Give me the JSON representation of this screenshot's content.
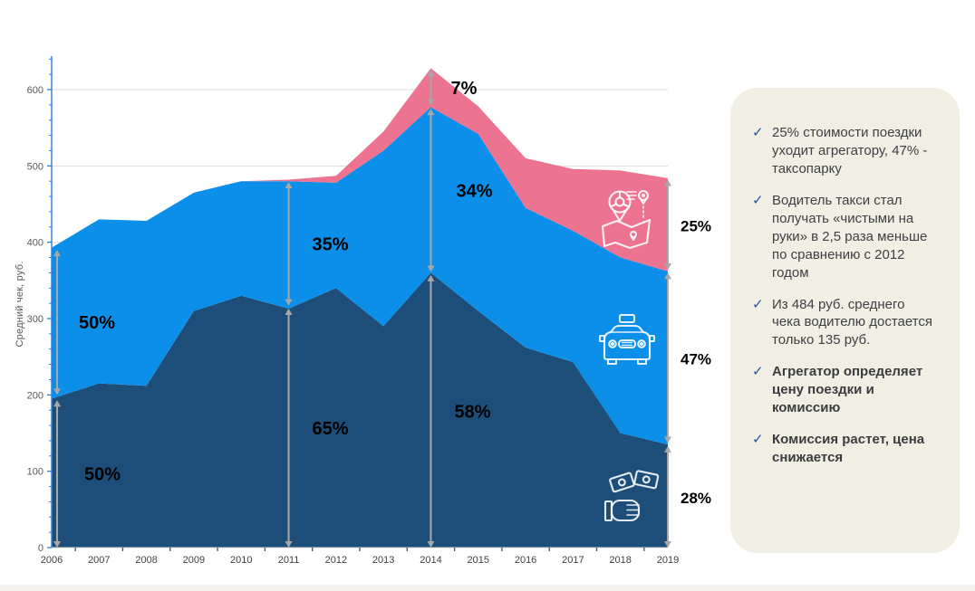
{
  "chart": {
    "axis_color": "#2E7FD4",
    "grid_color": "#DCDCDC",
    "arrow_color": "#A8A8A8",
    "tick_label_color": "#595959",
    "x_label_color": "#404040",
    "pct_label_color": "#000000",
    "y_ticks": [
      0,
      100,
      200,
      300,
      400,
      500,
      600
    ]
  },
  "chart_data": {
    "type": "area",
    "stacked": true,
    "title": "",
    "ylabel": "Средний чек, руб.",
    "xlabel": "",
    "ylim": [
      0,
      650
    ],
    "grid": true,
    "x": [
      2006,
      2007,
      2008,
      2009,
      2010,
      2011,
      2012,
      2013,
      2014,
      2015,
      2016,
      2017,
      2018,
      2019
    ],
    "series": [
      {
        "name": "Водитель такси (чистыми на руки)",
        "icon": "money-in-hand-icon",
        "color": "#1D4E79",
        "values": [
          195,
          215,
          212,
          310,
          330,
          313,
          340,
          290,
          360,
          310,
          262,
          243,
          150,
          135
        ]
      },
      {
        "name": "Таксопарк",
        "icon": "taxi-icon",
        "color": "#0B8FE9",
        "values": [
          198,
          215,
          216,
          155,
          150,
          167,
          138,
          230,
          217,
          232,
          183,
          172,
          230,
          227
        ]
      },
      {
        "name": "Агрегатор",
        "icon": "aggregator-map-icon",
        "color": "#EC7490",
        "values": [
          0,
          0,
          0,
          0,
          0,
          2,
          9,
          25,
          51,
          36,
          65,
          81,
          114,
          122
        ]
      }
    ],
    "stack_totals": [
      393,
      430,
      428,
      465,
      480,
      482,
      487,
      545,
      628,
      578,
      510,
      496,
      494,
      484
    ],
    "annotations": [
      {
        "year": 2006,
        "from": 0,
        "to": 193,
        "label": "50%",
        "dx": 30
      },
      {
        "year": 2006,
        "from": 200,
        "to": 390,
        "label": "50%",
        "dx": 24
      },
      {
        "year": 2011,
        "from": 0,
        "to": 313,
        "label": "65%",
        "dx": 26
      },
      {
        "year": 2011,
        "from": 317,
        "to": 479,
        "label": "35%",
        "dx": 26
      },
      {
        "year": 2014,
        "from": 0,
        "to": 357,
        "label": "58%",
        "dx": 26
      },
      {
        "year": 2014,
        "from": 361,
        "to": 575,
        "label": "34%",
        "dx": 28
      },
      {
        "year": 2014,
        "from": 579,
        "to": 626,
        "label": "7%",
        "dx": 22
      },
      {
        "year": 2019,
        "from": 0,
        "to": 133,
        "label": "28%",
        "dx": 14,
        "edge": true
      },
      {
        "year": 2019,
        "from": 137,
        "to": 360,
        "label": "47%",
        "dx": 14,
        "edge": true
      },
      {
        "year": 2019,
        "from": 364,
        "to": 482,
        "label": "25%",
        "dx": 14,
        "edge": true
      }
    ]
  },
  "sidebar": {
    "background": "#F1EEE3",
    "check_glyph": "✓",
    "check_color": "#2456A3",
    "bullets": [
      {
        "text": "25% стоимости поездки уходит агрегатору, 47% - таксопарку",
        "bold": false
      },
      {
        "text": "Водитель такси стал получать «чистыми на руки» в 2,5 раза меньше по сравнению с 2012 годом",
        "bold": false
      },
      {
        "text": "Из 484 руб. среднего чека  водителю достается только 135 руб.",
        "bold": false
      },
      {
        "text": "Агрегатор определяет цену поездки и комиссию",
        "bold": true
      },
      {
        "text": "Комиссия растет, цена снижается",
        "bold": true
      }
    ]
  }
}
